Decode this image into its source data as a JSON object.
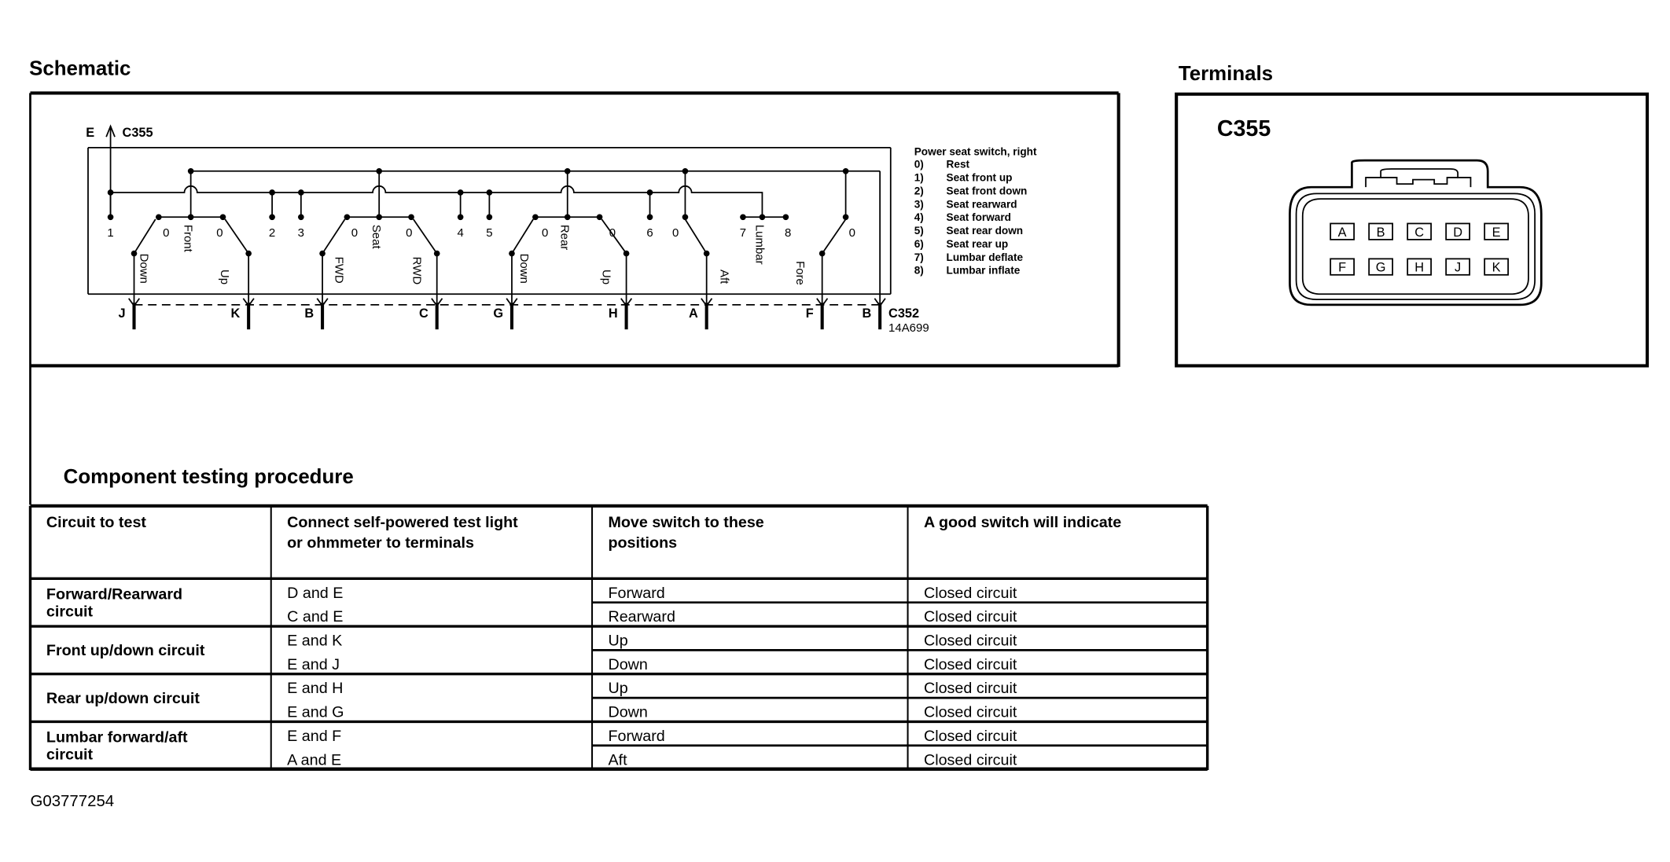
{
  "schematic": {
    "title": "Schematic",
    "top_connector": {
      "pin": "E",
      "name": "C355"
    },
    "bottom_connector": {
      "name": "C352",
      "part": "14A699"
    },
    "contact_numbers": [
      "1",
      "0",
      "0",
      "2",
      "3",
      "0",
      "0",
      "4",
      "5",
      "0",
      "0",
      "6",
      "0",
      "7",
      "8",
      "0"
    ],
    "switch_labels": [
      "Front",
      "Seat",
      "Rear",
      "Lumbar"
    ],
    "position_labels": [
      "Down",
      "Up",
      "FWD",
      "RWD",
      "Down",
      "Up",
      "Aft",
      "Fore"
    ],
    "terminals": [
      "J",
      "K",
      "B",
      "C",
      "G",
      "H",
      "A",
      "F",
      "B"
    ],
    "legend": {
      "title": "Power seat switch, right",
      "items": [
        {
          "n": "0)",
          "t": "Rest"
        },
        {
          "n": "1)",
          "t": "Seat front up"
        },
        {
          "n": "2)",
          "t": "Seat front down"
        },
        {
          "n": "3)",
          "t": "Seat rearward"
        },
        {
          "n": "4)",
          "t": "Seat forward"
        },
        {
          "n": "5)",
          "t": "Seat rear down"
        },
        {
          "n": "6)",
          "t": "Seat rear up"
        },
        {
          "n": "7)",
          "t": "Lumbar deflate"
        },
        {
          "n": "8)",
          "t": "Lumbar inflate"
        }
      ]
    }
  },
  "terminals_panel": {
    "title": "Terminals",
    "connector": "C355",
    "pins_row1": [
      "A",
      "B",
      "C",
      "D",
      "E"
    ],
    "pins_row2": [
      "F",
      "G",
      "H",
      "J",
      "K"
    ]
  },
  "procedure": {
    "title": "Component testing procedure",
    "headers": [
      [
        "Circuit to test"
      ],
      [
        "Connect self-powered test light",
        "or ohmmeter to terminals"
      ],
      [
        "Move switch to these",
        "positions"
      ],
      [
        "A good switch will indicate"
      ]
    ],
    "groups": [
      {
        "circuit": [
          "Forward/Rearward",
          "circuit"
        ],
        "rows": [
          [
            "D and E",
            "Forward",
            "Closed circuit"
          ],
          [
            "C and E",
            "Rearward",
            "Closed circuit"
          ]
        ]
      },
      {
        "circuit": [
          "Front up/down circuit"
        ],
        "rows": [
          [
            "E and K",
            "Up",
            "Closed circuit"
          ],
          [
            "E and J",
            "Down",
            "Closed circuit"
          ]
        ]
      },
      {
        "circuit": [
          "Rear up/down circuit"
        ],
        "rows": [
          [
            "E and H",
            "Up",
            "Closed circuit"
          ],
          [
            "E and G",
            "Down",
            "Closed circuit"
          ]
        ]
      },
      {
        "circuit": [
          "Lumbar forward/aft",
          "circuit"
        ],
        "rows": [
          [
            "E and F",
            "Forward",
            "Closed circuit"
          ],
          [
            "A and E",
            "Aft",
            "Closed circuit"
          ]
        ]
      }
    ]
  },
  "figure_id": "G03777254"
}
